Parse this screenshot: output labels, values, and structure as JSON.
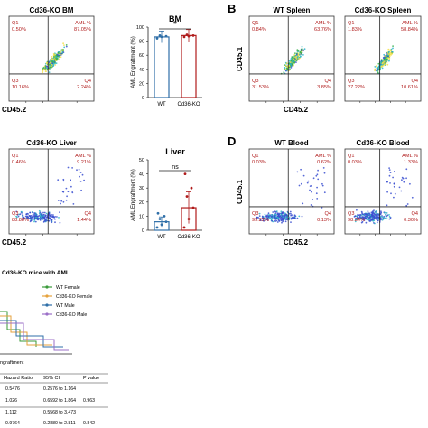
{
  "figure": {
    "panel_b_letter": "B",
    "panel_d_letter": "D",
    "flow_plots": [
      {
        "id": "cd36ko-bm",
        "title": "Cd36-KO BM",
        "q1_label": "Q1",
        "q1": "0.50%",
        "aml_label": "AML %",
        "aml": "87.05%",
        "q3_label": "Q3",
        "q3": "10.16%",
        "q4_label": "Q4",
        "q4": "2.24%",
        "xlabel": "CD45.2",
        "ylabel": ""
      },
      {
        "id": "wt-spleen",
        "title": "WT Spleen",
        "q1_label": "Q1",
        "q1": "0.84%",
        "aml_label": "AML %",
        "aml": "63.76%",
        "q3_label": "Q3",
        "q3": "31.53%",
        "q4_label": "Q4",
        "q4": "3.85%",
        "xlabel": "",
        "ylabel": "CD45.1"
      },
      {
        "id": "cd36ko-spleen",
        "title": "Cd36-KO Spleen",
        "q1_label": "Q1",
        "q1": "1.83%",
        "aml_label": "AML %",
        "aml": "58.84%",
        "q3_label": "Q3",
        "q3": "27.22%",
        "q4_label": "Q4",
        "q4": "10.61%",
        "xlabel": "CD45.2",
        "ylabel": ""
      },
      {
        "id": "cd36ko-liver",
        "title": "Cd36-KO Liver",
        "q1_label": "Q1",
        "q1": "0.46%",
        "aml_label": "AML %",
        "aml": "9.21%",
        "q3_label": "Q3",
        "q3": "88.88%",
        "q4_label": "Q4",
        "q4": "1.44%",
        "xlabel": "CD45.2",
        "ylabel": ""
      },
      {
        "id": "wt-blood",
        "title": "WT Blood",
        "q1_label": "Q1",
        "q1": "0.03%",
        "aml_label": "AML %",
        "aml": "0.62%",
        "q3_label": "Q3",
        "q3": "99.22%",
        "q4_label": "Q4",
        "q4": "0.13%",
        "xlabel": "",
        "ylabel": "CD45.1"
      },
      {
        "id": "cd36ko-blood",
        "title": "Cd36-KO Blood",
        "q1_label": "Q1",
        "q1": "0.03%",
        "aml_label": "AML %",
        "aml": "1.33%",
        "q3_label": "Q3",
        "q3": "98.34%",
        "q4_label": "Q4",
        "q4": "0.30%",
        "xlabel": "CD45.2",
        "ylabel": ""
      }
    ],
    "survival": {
      "title_fragment": "Cd36-KO mice with AML",
      "legend": [
        {
          "label": "WT Female",
          "color": "#3a9a3a"
        },
        {
          "label": "Cd36-KO Female",
          "color": "#e6a23c"
        },
        {
          "label": "WT Male",
          "color": "#2f6fa8"
        },
        {
          "label": "Cd36-KO Male",
          "color": "#9b6fc7"
        }
      ],
      "xlabel_fragment": "ngraftment",
      "table_headers": [
        "Hazard Ratio",
        "95% CI",
        "P value"
      ],
      "table_rows": [
        [
          "0.5476",
          "0.2576 to 1.164",
          ""
        ],
        [
          "1.026",
          "0.6592 to 1.864",
          "0.963"
        ],
        [
          "1.112",
          "0.5568 to 3.473",
          ""
        ],
        [
          "0.9764",
          "0.2880 to 2.811",
          "0.842"
        ]
      ]
    }
  },
  "chart_data": [
    {
      "type": "bar",
      "title": "BM",
      "categories": [
        "WT",
        "Cd36-KO"
      ],
      "values": [
        86,
        88
      ],
      "points": [
        [
          84,
          86,
          87,
          88
        ],
        [
          86,
          87,
          88,
          89
        ]
      ],
      "significance": "*",
      "ylabel": "AML Engraftment (%)",
      "ylim": [
        0,
        100
      ],
      "yticks": [
        0,
        20,
        40,
        60,
        80,
        100
      ],
      "colors": [
        "#2f6fa8",
        "#b01b1b"
      ]
    },
    {
      "type": "bar",
      "title": "Liver",
      "categories": [
        "WT",
        "Cd36-KO"
      ],
      "values": [
        6,
        16
      ],
      "points": [
        [
          2,
          4,
          6,
          8,
          10,
          12
        ],
        [
          2,
          8,
          16,
          24,
          30,
          40
        ]
      ],
      "significance": "ns",
      "ylabel": "AML Engraftment (%)",
      "ylim": [
        0,
        50
      ],
      "yticks": [
        0,
        10,
        20,
        30,
        40,
        50
      ],
      "colors": [
        "#2f6fa8",
        "#b01b1b"
      ]
    }
  ]
}
